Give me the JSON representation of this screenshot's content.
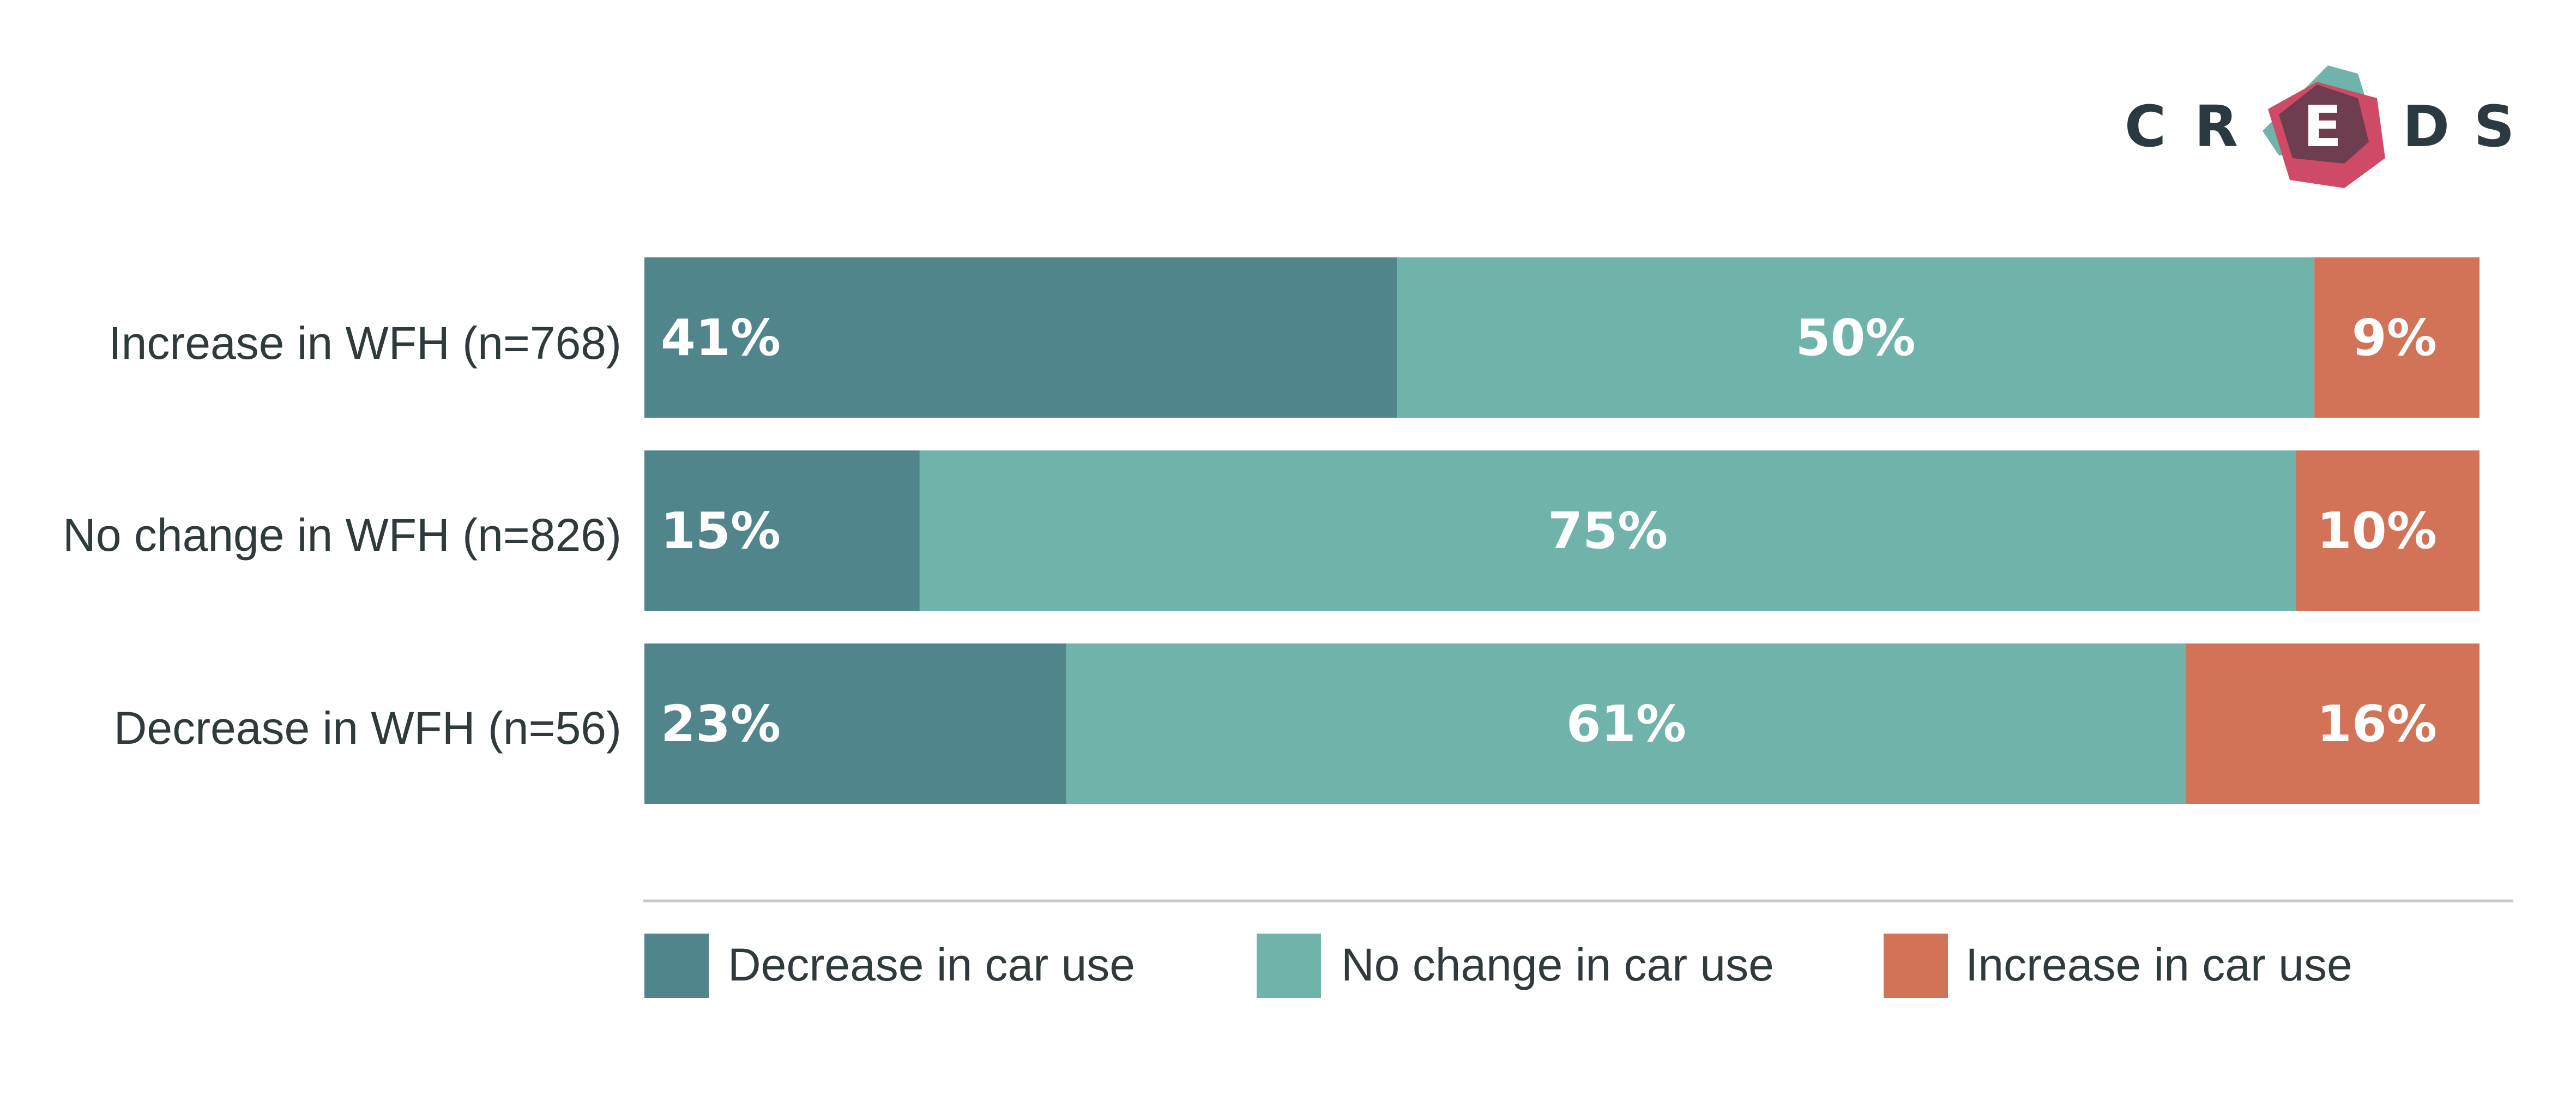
{
  "logo": {
    "letters": [
      "C",
      "R",
      "E",
      "D",
      "S"
    ]
  },
  "colors": {
    "decrease": "#4f858b",
    "no_change": "#6fb3aa",
    "increase": "#d27256",
    "logo_teal": "#6fb3aa",
    "logo_red": "#cf4a66",
    "logo_dark": "#6e3d4f"
  },
  "chart_data": {
    "type": "bar",
    "orientation": "horizontal",
    "stacked": true,
    "percent_of_total": true,
    "categories": [
      "Increase in WFH (n=768)",
      "No change in WFH (n=826)",
      "Decrease in WFH (n=56)"
    ],
    "series": [
      {
        "name": "Decrease in car use",
        "values": [
          41,
          15,
          23
        ],
        "labels": [
          "41%",
          "15%",
          "23%"
        ]
      },
      {
        "name": "No change in car use",
        "values": [
          50,
          75,
          61
        ],
        "labels": [
          "50%",
          "75%",
          "61%"
        ]
      },
      {
        "name": "Increase in car use",
        "values": [
          9,
          10,
          16
        ],
        "labels": [
          "9%",
          "10%",
          "16%"
        ]
      }
    ],
    "xlim": [
      0,
      100
    ],
    "grid": false,
    "legend_position": "bottom"
  }
}
